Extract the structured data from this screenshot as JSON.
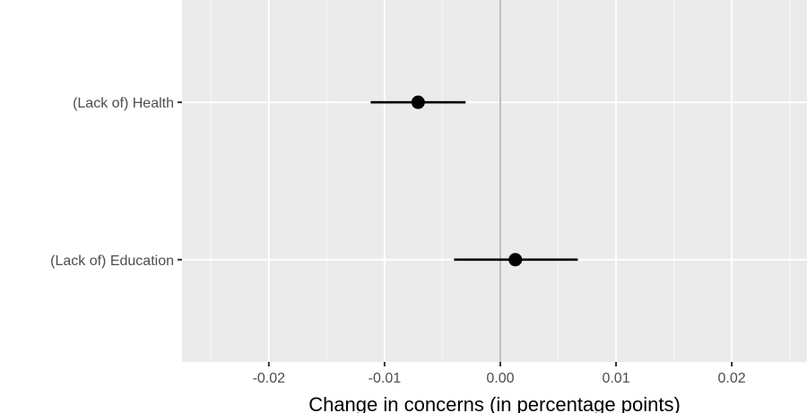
{
  "chart_data": {
    "type": "scatter",
    "subtype": "coefficient-plot",
    "title": "",
    "xlabel": "Change in concerns (in percentage points)",
    "ylabel": "",
    "xlim": [
      -0.0275,
      0.0265
    ],
    "x_ticks": [
      -0.02,
      -0.01,
      0.0,
      0.01,
      0.02
    ],
    "x_tick_labels": [
      "-0.02",
      "-0.01",
      "0.00",
      "0.01",
      "0.02"
    ],
    "grid": true,
    "reference_line_x": 0,
    "categories": [
      "(Lack of) Health",
      "(Lack of) Education"
    ],
    "estimates": [
      -0.0071,
      0.0013
    ],
    "ci_low": [
      -0.0112,
      -0.004
    ],
    "ci_high": [
      -0.003,
      0.0067
    ],
    "colors": {
      "panel_background": "#ebebeb",
      "grid_major": "#ffffff",
      "grid_minor": "#f7f7f7",
      "reference_line": "#bdbdbd",
      "point": "#000000"
    }
  }
}
